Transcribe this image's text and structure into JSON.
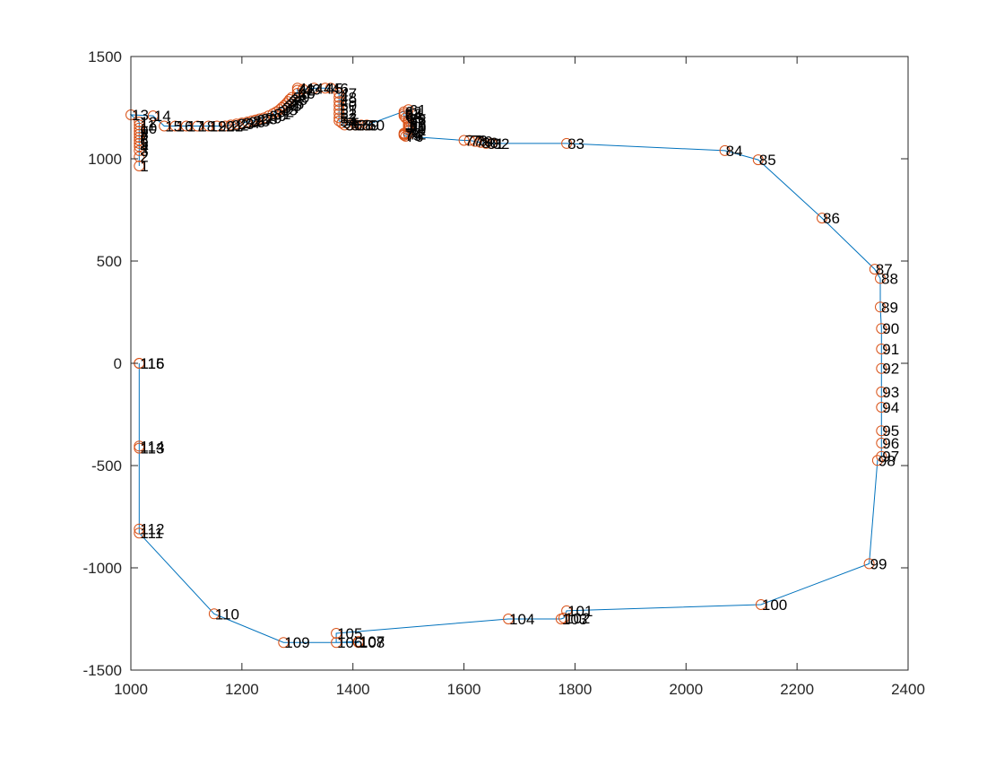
{
  "colors": {
    "line": "#0072BD",
    "marker": "#D95319",
    "axis": "#262626",
    "background": "#ffffff"
  },
  "chart_data": {
    "type": "line",
    "title": "",
    "xlabel": "",
    "ylabel": "",
    "xlim": [
      1000,
      2400
    ],
    "ylim": [
      -1500,
      1500
    ],
    "grid": false,
    "legend": "none",
    "x_ticks": [
      1000,
      1200,
      1400,
      1600,
      1800,
      2000,
      2200,
      2400
    ],
    "y_ticks": [
      -1500,
      -1000,
      -500,
      0,
      500,
      1000,
      1500
    ],
    "x_tick_labels": [
      "1000",
      "1200",
      "1400",
      "1600",
      "1800",
      "2000",
      "2200",
      "2400"
    ],
    "y_tick_labels": [
      "-1500",
      "-1000",
      "-500",
      "0",
      "500",
      "1000",
      "1500"
    ],
    "x": [
      1015,
      1015,
      1015,
      1015,
      1015,
      1015,
      1015,
      1015,
      1015,
      1015,
      1015,
      1015,
      1000,
      1040,
      1060,
      1080,
      1100,
      1120,
      1140,
      1155,
      1170,
      1180,
      1190,
      1200,
      1210,
      1218,
      1225,
      1232,
      1240,
      1248,
      1256,
      1262,
      1268,
      1272,
      1276,
      1280,
      1283,
      1286,
      1290,
      1300,
      1300,
      1300,
      1310,
      1330,
      1350,
      1360,
      1375,
      1375,
      1375,
      1375,
      1375,
      1375,
      1375,
      1375,
      1380,
      1385,
      1395,
      1405,
      1415,
      1425,
      1500,
      1492,
      1492,
      1492,
      1495,
      1500,
      1500,
      1500,
      1500,
      1500,
      1500,
      1500,
      1492,
      1492,
      1492,
      1495,
      1600,
      1610,
      1620,
      1630,
      1640,
      1650,
      1785,
      2070,
      2130,
      2245,
      2340,
      2350,
      2350,
      2352,
      2352,
      2352,
      2352,
      2352,
      2352,
      2352,
      2352,
      2345,
      2330,
      2135,
      1785,
      1780,
      1775,
      1680,
      1370,
      1370,
      1410,
      1410,
      1275,
      1150,
      1015,
      1015,
      1015,
      1015,
      1015,
      1015
    ],
    "y": [
      965,
      1010,
      1040,
      1060,
      1075,
      1090,
      1105,
      1120,
      1135,
      1150,
      1165,
      1180,
      1215,
      1210,
      1160,
      1160,
      1160,
      1160,
      1160,
      1160,
      1160,
      1165,
      1170,
      1175,
      1180,
      1185,
      1190,
      1195,
      1200,
      1210,
      1220,
      1230,
      1240,
      1250,
      1260,
      1270,
      1280,
      1290,
      1300,
      1320,
      1345,
      1335,
      1340,
      1345,
      1345,
      1345,
      1320,
      1300,
      1280,
      1260,
      1240,
      1220,
      1200,
      1185,
      1175,
      1165,
      1165,
      1165,
      1165,
      1165,
      1240,
      1230,
      1220,
      1210,
      1200,
      1190,
      1180,
      1170,
      1160,
      1150,
      1140,
      1120,
      1125,
      1120,
      1115,
      1110,
      1090,
      1090,
      1085,
      1080,
      1075,
      1075,
      1075,
      1040,
      995,
      710,
      460,
      415,
      275,
      170,
      70,
      -25,
      -140,
      -215,
      -330,
      -390,
      -455,
      -475,
      -980,
      -1180,
      -1210,
      -1245,
      -1250,
      -1250,
      -1320,
      -1365,
      -1360,
      -1365,
      -1365,
      -1225,
      -830,
      -810,
      -415,
      -405,
      0,
      0
    ]
  },
  "point_labels": [
    "1",
    "2",
    "3",
    "4",
    "5",
    "6",
    "7",
    "8",
    "9",
    "10",
    "11",
    "12",
    "13",
    "14",
    "15",
    "16",
    "17",
    "18",
    "19",
    "20",
    "21",
    "22",
    "23",
    "24",
    "25",
    "26",
    "27",
    "28",
    "29",
    "30",
    "31",
    "32",
    "33",
    "34",
    "35",
    "36",
    "37",
    "38",
    "39",
    "40",
    "41",
    "42",
    "43",
    "44",
    "45",
    "46",
    "47",
    "48",
    "49",
    "50",
    "51",
    "52",
    "53",
    "54",
    "55",
    "56",
    "57",
    "58",
    "59",
    "60",
    "61",
    "62",
    "63",
    "64",
    "65",
    "66",
    "67",
    "68",
    "69",
    "70",
    "71",
    "72",
    "73",
    "74",
    "75",
    "76",
    "77",
    "78",
    "79",
    "80",
    "81",
    "82",
    "83",
    "84",
    "85",
    "86",
    "87",
    "88",
    "89",
    "90",
    "91",
    "92",
    "93",
    "94",
    "95",
    "96",
    "97",
    "98",
    "99",
    "100",
    "101",
    "102",
    "103",
    "104",
    "105",
    "106",
    "107",
    "108",
    "109",
    "110",
    "111",
    "112",
    "113",
    "114",
    "115",
    "116"
  ]
}
